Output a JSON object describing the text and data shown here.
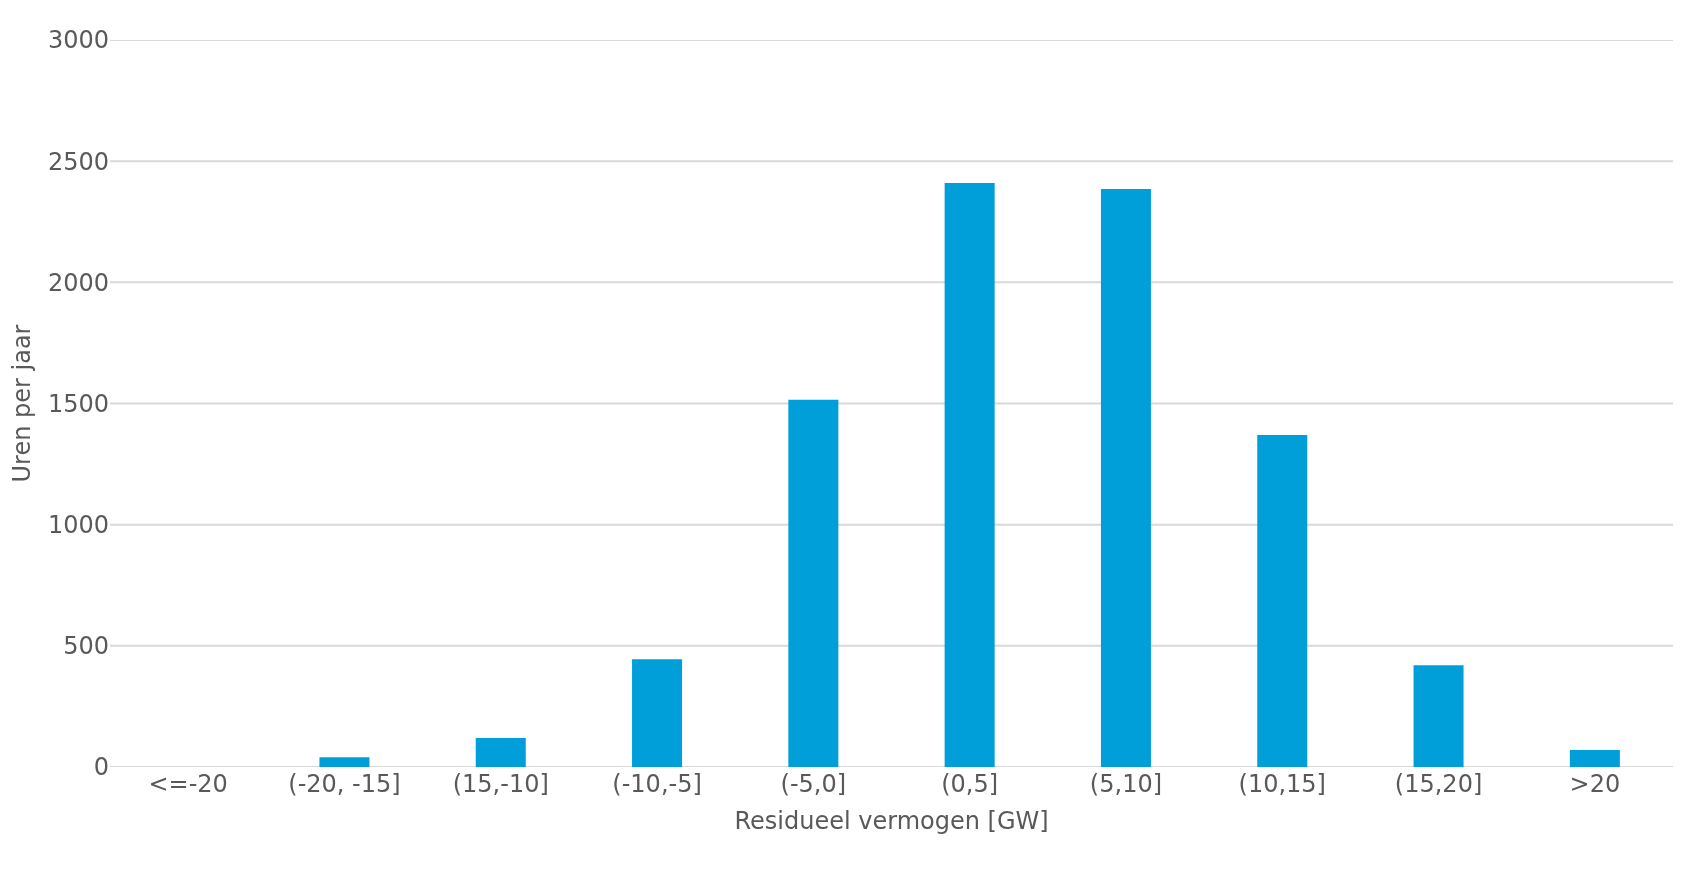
{
  "chart_data": {
    "type": "bar",
    "xlabel": "Residueel vermogen [GW]",
    "ylabel": "Uren per jaar",
    "categories": [
      "<=-20",
      "(-20, -15]",
      "(15,-10]",
      "(-10,-5]",
      "(-5,0]",
      "(0,5]",
      "(5,10]",
      "(10,15]",
      "(15,20]",
      ">20"
    ],
    "values": [
      0,
      40,
      120,
      445,
      1515,
      2410,
      2385,
      1370,
      420,
      70
    ],
    "color": "#009fda",
    "ylim": [
      0,
      3000
    ],
    "yticks": [
      0,
      500,
      1000,
      1500,
      2000,
      2500,
      3000
    ],
    "grid": "y"
  }
}
